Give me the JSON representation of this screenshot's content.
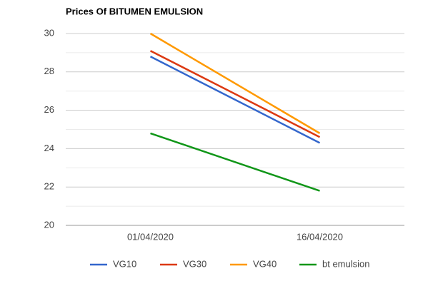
{
  "chart_data": {
    "type": "line",
    "title": "Prices Of BITUMEN EMULSION",
    "categories": [
      "01/04/2020",
      "16/04/2020"
    ],
    "series": [
      {
        "name": "VG10",
        "color": "#3366cc",
        "values": [
          28.8,
          24.3
        ]
      },
      {
        "name": "VG30",
        "color": "#dc3912",
        "values": [
          29.1,
          24.6
        ]
      },
      {
        "name": "VG40",
        "color": "#ff9900",
        "values": [
          30,
          24.8
        ]
      },
      {
        "name": "bt emulsion",
        "color": "#109618",
        "values": [
          24.8,
          21.8
        ]
      }
    ],
    "ylim": [
      20,
      30
    ],
    "yticks": [
      20,
      22,
      24,
      26,
      28,
      30
    ],
    "minor_yticks": [
      21,
      23,
      25,
      27,
      29
    ],
    "grid": true,
    "legend": "bottom"
  }
}
